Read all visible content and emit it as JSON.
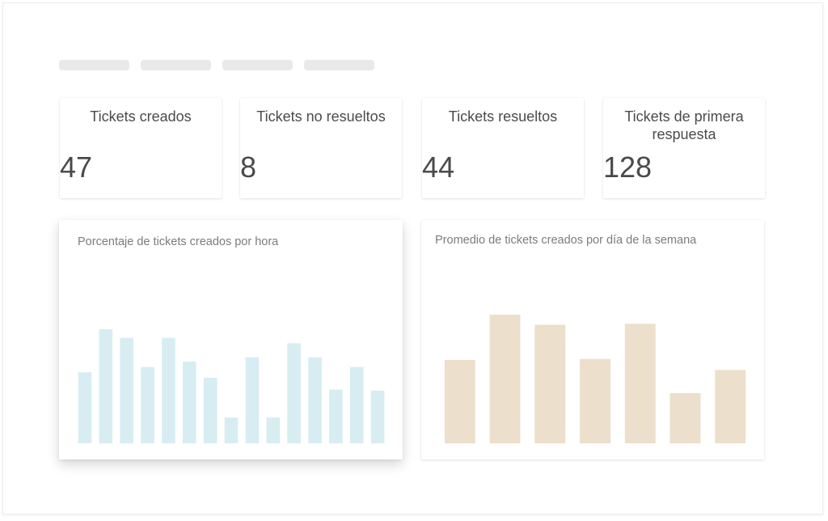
{
  "stats": [
    {
      "label": "Tickets creados",
      "value": "47"
    },
    {
      "label": "Tickets no resueltos",
      "value": "8"
    },
    {
      "label": "Tickets resueltos",
      "value": "44"
    },
    {
      "label": "Tickets de primera respuesta",
      "value": "128"
    }
  ],
  "colors": {
    "hourly_bar": "#d7edf2",
    "weekday_bar": "#ecdfcb"
  },
  "chart_data": [
    {
      "type": "bar",
      "title": "Porcentaje de tickets creados por hora",
      "values": [
        6.6,
        10.6,
        9.8,
        7.1,
        9.8,
        7.6,
        6.1,
        2.4,
        8.0,
        2.4,
        9.3,
        8.0,
        5.0,
        7.1,
        4.9
      ],
      "grid": false,
      "legend": "none"
    },
    {
      "type": "bar",
      "title": "Promedio de tickets creados por día de la semana",
      "values": [
        8.3,
        12.8,
        11.8,
        8.4,
        11.9,
        5.0,
        7.3
      ],
      "grid": false,
      "legend": "none"
    }
  ]
}
